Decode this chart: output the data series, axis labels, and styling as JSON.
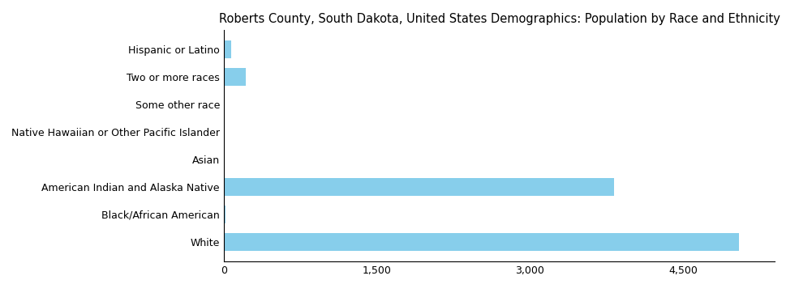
{
  "title": "Roberts County, South Dakota, United States Demographics: Population by Race and Ethnicity",
  "categories": [
    "White",
    "Black/African American",
    "American Indian and Alaska Native",
    "Asian",
    "Native Hawaiian or Other Pacific Islander",
    "Some other race",
    "Two or more races",
    "Hispanic or Latino"
  ],
  "values": [
    5050,
    18,
    3820,
    10,
    8,
    10,
    215,
    75
  ],
  "bar_color": "#87ceeb",
  "xlim": [
    0,
    5400
  ],
  "xticks": [
    0,
    1500,
    3000,
    4500
  ],
  "xtick_labels": [
    "0",
    "1,500",
    "3,000",
    "4,500"
  ],
  "background_color": "#ffffff",
  "title_fontsize": 10.5,
  "tick_fontsize": 9,
  "label_fontsize": 9
}
